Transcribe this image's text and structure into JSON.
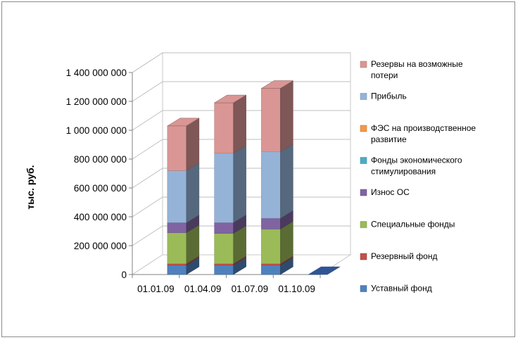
{
  "chart_data": {
    "type": "bar",
    "stacked": true,
    "three_d": true,
    "title": "",
    "xlabel": "",
    "ylabel": "тыс. руб.",
    "ylim": [
      0,
      1400000000
    ],
    "yticks": [
      0,
      200000000,
      400000000,
      600000000,
      800000000,
      1000000000,
      1200000000,
      1400000000
    ],
    "ytick_labels": [
      "0",
      "200 000 000",
      "400 000 000",
      "600 000 000",
      "800 000 000",
      "1 000 000 000",
      "1 200 000 000",
      "1 400 000 000"
    ],
    "categories": [
      "01.01.09",
      "01.04.09",
      "01.07.09",
      "01.10.09"
    ],
    "grid": true,
    "legend_position": "right",
    "series": [
      {
        "name": "Уставный фонд",
        "color": "#4f81bd",
        "values": [
          65000000,
          65000000,
          65000000,
          0
        ]
      },
      {
        "name": "Резервный фонд",
        "color": "#c0504d",
        "values": [
          10000000,
          10000000,
          10000000,
          0
        ]
      },
      {
        "name": "Специальные фонды",
        "color": "#9bbb59",
        "values": [
          215000000,
          210000000,
          240000000,
          0
        ]
      },
      {
        "name": "Износ ОС",
        "color": "#8064a2",
        "values": [
          70000000,
          75000000,
          75000000,
          0
        ]
      },
      {
        "name": "Фонды экономического стимулирования",
        "color": "#4bacc6",
        "values": [
          0,
          0,
          0,
          0
        ]
      },
      {
        "name": "ФЭС на производственное развитие",
        "color": "#f79646",
        "values": [
          0,
          0,
          0,
          0
        ]
      },
      {
        "name": "Прибыль",
        "color": "#95b3d7",
        "values": [
          360000000,
          480000000,
          460000000,
          0
        ]
      },
      {
        "name": "Резервы на возможные потери",
        "color": "#d99694",
        "values": [
          310000000,
          350000000,
          440000000,
          0
        ]
      }
    ],
    "legend_order": [
      {
        "label": "Резервы на возможные\nпотери",
        "series": 7
      },
      {
        "label": "Прибыль",
        "series": 6
      },
      {
        "label": "ФЭС на производственное\nразвитие",
        "series": 5
      },
      {
        "label": "Фонды экономического\nстимулирования",
        "series": 4
      },
      {
        "label": "Износ ОС",
        "series": 3
      },
      {
        "label": "Специальные фонды",
        "series": 2
      },
      {
        "label": "Резервный фонд",
        "series": 1
      },
      {
        "label": "Уставный фонд",
        "series": 0
      }
    ]
  }
}
